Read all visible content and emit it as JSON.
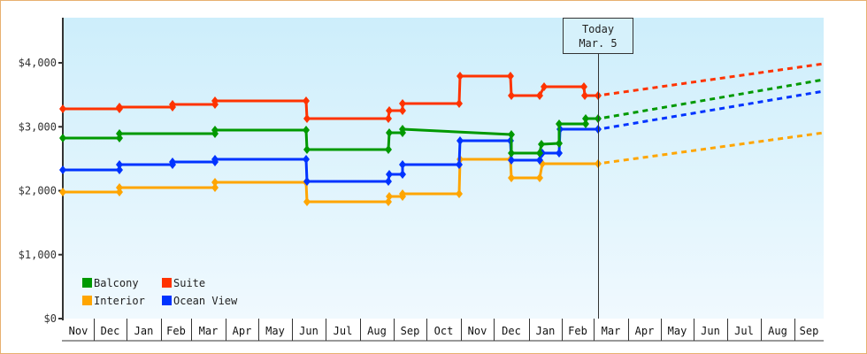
{
  "chart_data": {
    "type": "line",
    "title": "",
    "xlabel": "",
    "ylabel": "",
    "ylim": [
      0,
      4600
    ],
    "y_ticks": [
      "$0",
      "$1,000",
      "$2,000",
      "$3,000",
      "$4,000"
    ],
    "x_tick_labels": [
      "Nov",
      "Dec",
      "Jan",
      "Feb",
      "Mar",
      "Apr",
      "May",
      "Jun",
      "Jul",
      "Aug",
      "Sep",
      "Oct",
      "Nov",
      "Dec",
      "Jan",
      "Feb",
      "Mar",
      "Apr",
      "May",
      "Jun",
      "Jul",
      "Aug",
      "Sep"
    ],
    "grid": false,
    "legend_position": "lower-left",
    "today_marker": {
      "line1": "Today",
      "line2": "Mar. 5"
    },
    "step_lines": true,
    "forecast_style": "dashed",
    "series": [
      {
        "name": "Balcony",
        "color": "#009900",
        "history": [
          {
            "x": "Nov",
            "value": 2820
          },
          {
            "x": "Dec",
            "value": 2890
          },
          {
            "x": "Mar",
            "value": 2950
          },
          {
            "x": "Jun",
            "value": 2640
          },
          {
            "x": "Aug",
            "value": 2910
          },
          {
            "x": "Sep",
            "value": 2960
          },
          {
            "x": "Nov",
            "value": 2890
          },
          {
            "x": "Dec",
            "value": 2580
          },
          {
            "x": "Jan",
            "value": 2790
          },
          {
            "x": "Feb",
            "value": 3050
          },
          {
            "x": "Feb (late)",
            "value": 3130
          },
          {
            "x": "Mar 5",
            "value": 3130
          }
        ],
        "forecast_end": {
          "x": "Sep",
          "value": 3750
        }
      },
      {
        "name": "Suite",
        "color": "#ff3300",
        "history": [
          {
            "x": "Nov",
            "value": 3280
          },
          {
            "x": "Dec",
            "value": 3300
          },
          {
            "x": "Feb",
            "value": 3350
          },
          {
            "x": "Mar",
            "value": 3410
          },
          {
            "x": "Jun",
            "value": 3130
          },
          {
            "x": "Aug",
            "value": 3260
          },
          {
            "x": "Sep",
            "value": 3360
          },
          {
            "x": "Oct",
            "value": 3790
          },
          {
            "x": "Dec",
            "value": 3490
          },
          {
            "x": "Jan",
            "value": 3630
          },
          {
            "x": "Feb",
            "value": 3490
          },
          {
            "x": "Mar 5",
            "value": 3490
          }
        ],
        "forecast_end": {
          "x": "Sep",
          "value": 3990
        }
      },
      {
        "name": "Interior",
        "color": "#ffa500",
        "history": [
          {
            "x": "Nov",
            "value": 1980
          },
          {
            "x": "Dec",
            "value": 2050
          },
          {
            "x": "Mar",
            "value": 2130
          },
          {
            "x": "Jun",
            "value": 1830
          },
          {
            "x": "Aug",
            "value": 1910
          },
          {
            "x": "Sep",
            "value": 1950
          },
          {
            "x": "Oct",
            "value": 2490
          },
          {
            "x": "Dec",
            "value": 2190
          },
          {
            "x": "Jan",
            "value": 2420
          },
          {
            "x": "Mar 5",
            "value": 2420
          }
        ],
        "forecast_end": {
          "x": "Sep",
          "value": 2910
        }
      },
      {
        "name": "Ocean View",
        "color": "#0033ff",
        "history": [
          {
            "x": "Nov",
            "value": 2320
          },
          {
            "x": "Dec",
            "value": 2410
          },
          {
            "x": "Feb",
            "value": 2450
          },
          {
            "x": "Mar",
            "value": 2490
          },
          {
            "x": "Jun",
            "value": 2150
          },
          {
            "x": "Aug",
            "value": 2250
          },
          {
            "x": "Sep",
            "value": 2410
          },
          {
            "x": "Oct",
            "value": 2780
          },
          {
            "x": "Dec",
            "value": 2470
          },
          {
            "x": "Jan",
            "value": 2700
          },
          {
            "x": "Feb",
            "value": 2960
          },
          {
            "x": "Mar 5",
            "value": 2960
          }
        ],
        "forecast_end": {
          "x": "Sep",
          "value": 3560
        }
      }
    ]
  },
  "legend": [
    {
      "label": "Balcony",
      "color": "#009900"
    },
    {
      "label": "Suite",
      "color": "#ff3300"
    },
    {
      "label": "Interior",
      "color": "#ffa500"
    },
    {
      "label": "Ocean View",
      "color": "#0033ff"
    }
  ],
  "today": {
    "line1": "Today",
    "line2": "Mar. 5"
  },
  "colors": {
    "frame_border": "#e8b070",
    "plot_bg_top": "#cdeefb",
    "plot_bg_bottom": "#f0f9fe",
    "axis": "#333333"
  }
}
